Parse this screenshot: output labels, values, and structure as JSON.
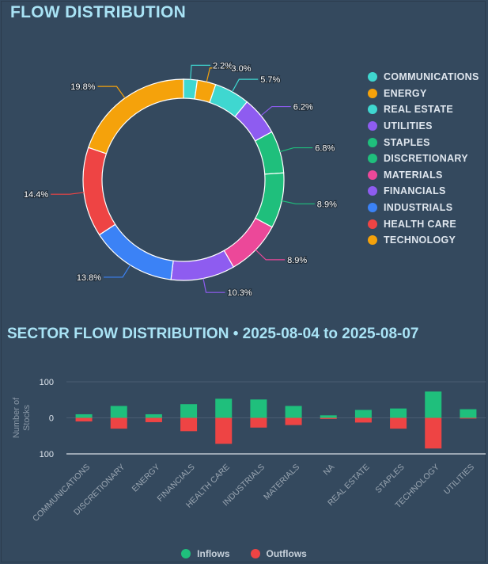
{
  "page": {
    "title": "FLOW DISTRIBUTION",
    "subtitle": "SECTOR FLOW DISTRIBUTION • 2025-08-04 to 2025-08-07"
  },
  "colors": {
    "background": "#34495e",
    "inflow": "#1fbf7c",
    "outflow": "#ee4444",
    "title": "#a9e3f5"
  },
  "chart_data": [
    {
      "type": "pie",
      "variant": "donut",
      "categories": [
        "COMMUNICATIONS",
        "ENERGY",
        "REAL ESTATE",
        "UTILITIES",
        "STAPLES",
        "DISCRETIONARY",
        "MATERIALS",
        "FINANCIALS",
        "INDUSTRIALS",
        "HEALTH CARE",
        "TECHNOLOGY"
      ],
      "values": [
        2.2,
        3.0,
        5.7,
        6.2,
        6.8,
        8.9,
        8.9,
        10.3,
        13.8,
        14.4,
        19.8
      ],
      "value_labels": [
        "2.2%",
        "3.0%",
        "5.7%",
        "6.2%",
        "6.8%",
        "8.9%",
        "8.9%",
        "10.3%",
        "13.8%",
        "14.4%",
        "19.8%"
      ],
      "colors": [
        "#3fd7d0",
        "#f5a20b",
        "#3fd7d0",
        "#8e5cf0",
        "#1fbf7c",
        "#1fbf7c",
        "#ec4899",
        "#8e5cf0",
        "#3b82f6",
        "#ee4444",
        "#f5a20b"
      ],
      "legend_position": "right"
    },
    {
      "type": "bar",
      "stacked_diverging": true,
      "categories": [
        "COMMUNICATIONS",
        "DISCRETIONARY",
        "ENERGY",
        "FINANCIALS",
        "HEALTH CARE",
        "INDUSTRIALS",
        "MATERIALS",
        "NA",
        "REAL ESTATE",
        "STAPLES",
        "TECHNOLOGY",
        "UTILITIES"
      ],
      "series": [
        {
          "name": "Inflows",
          "values": [
            10,
            33,
            10,
            38,
            53,
            51,
            33,
            7,
            22,
            26,
            73,
            24
          ]
        },
        {
          "name": "Outflows",
          "values": [
            -10,
            -30,
            -12,
            -37,
            -72,
            -27,
            -20,
            -3,
            -13,
            -30,
            -85,
            -2
          ]
        }
      ],
      "ylabel": "Number of Stocks",
      "yticks": [
        100,
        0,
        100
      ],
      "ylim": [
        -100,
        100
      ],
      "grid": true,
      "legend_position": "bottom-center"
    }
  ]
}
